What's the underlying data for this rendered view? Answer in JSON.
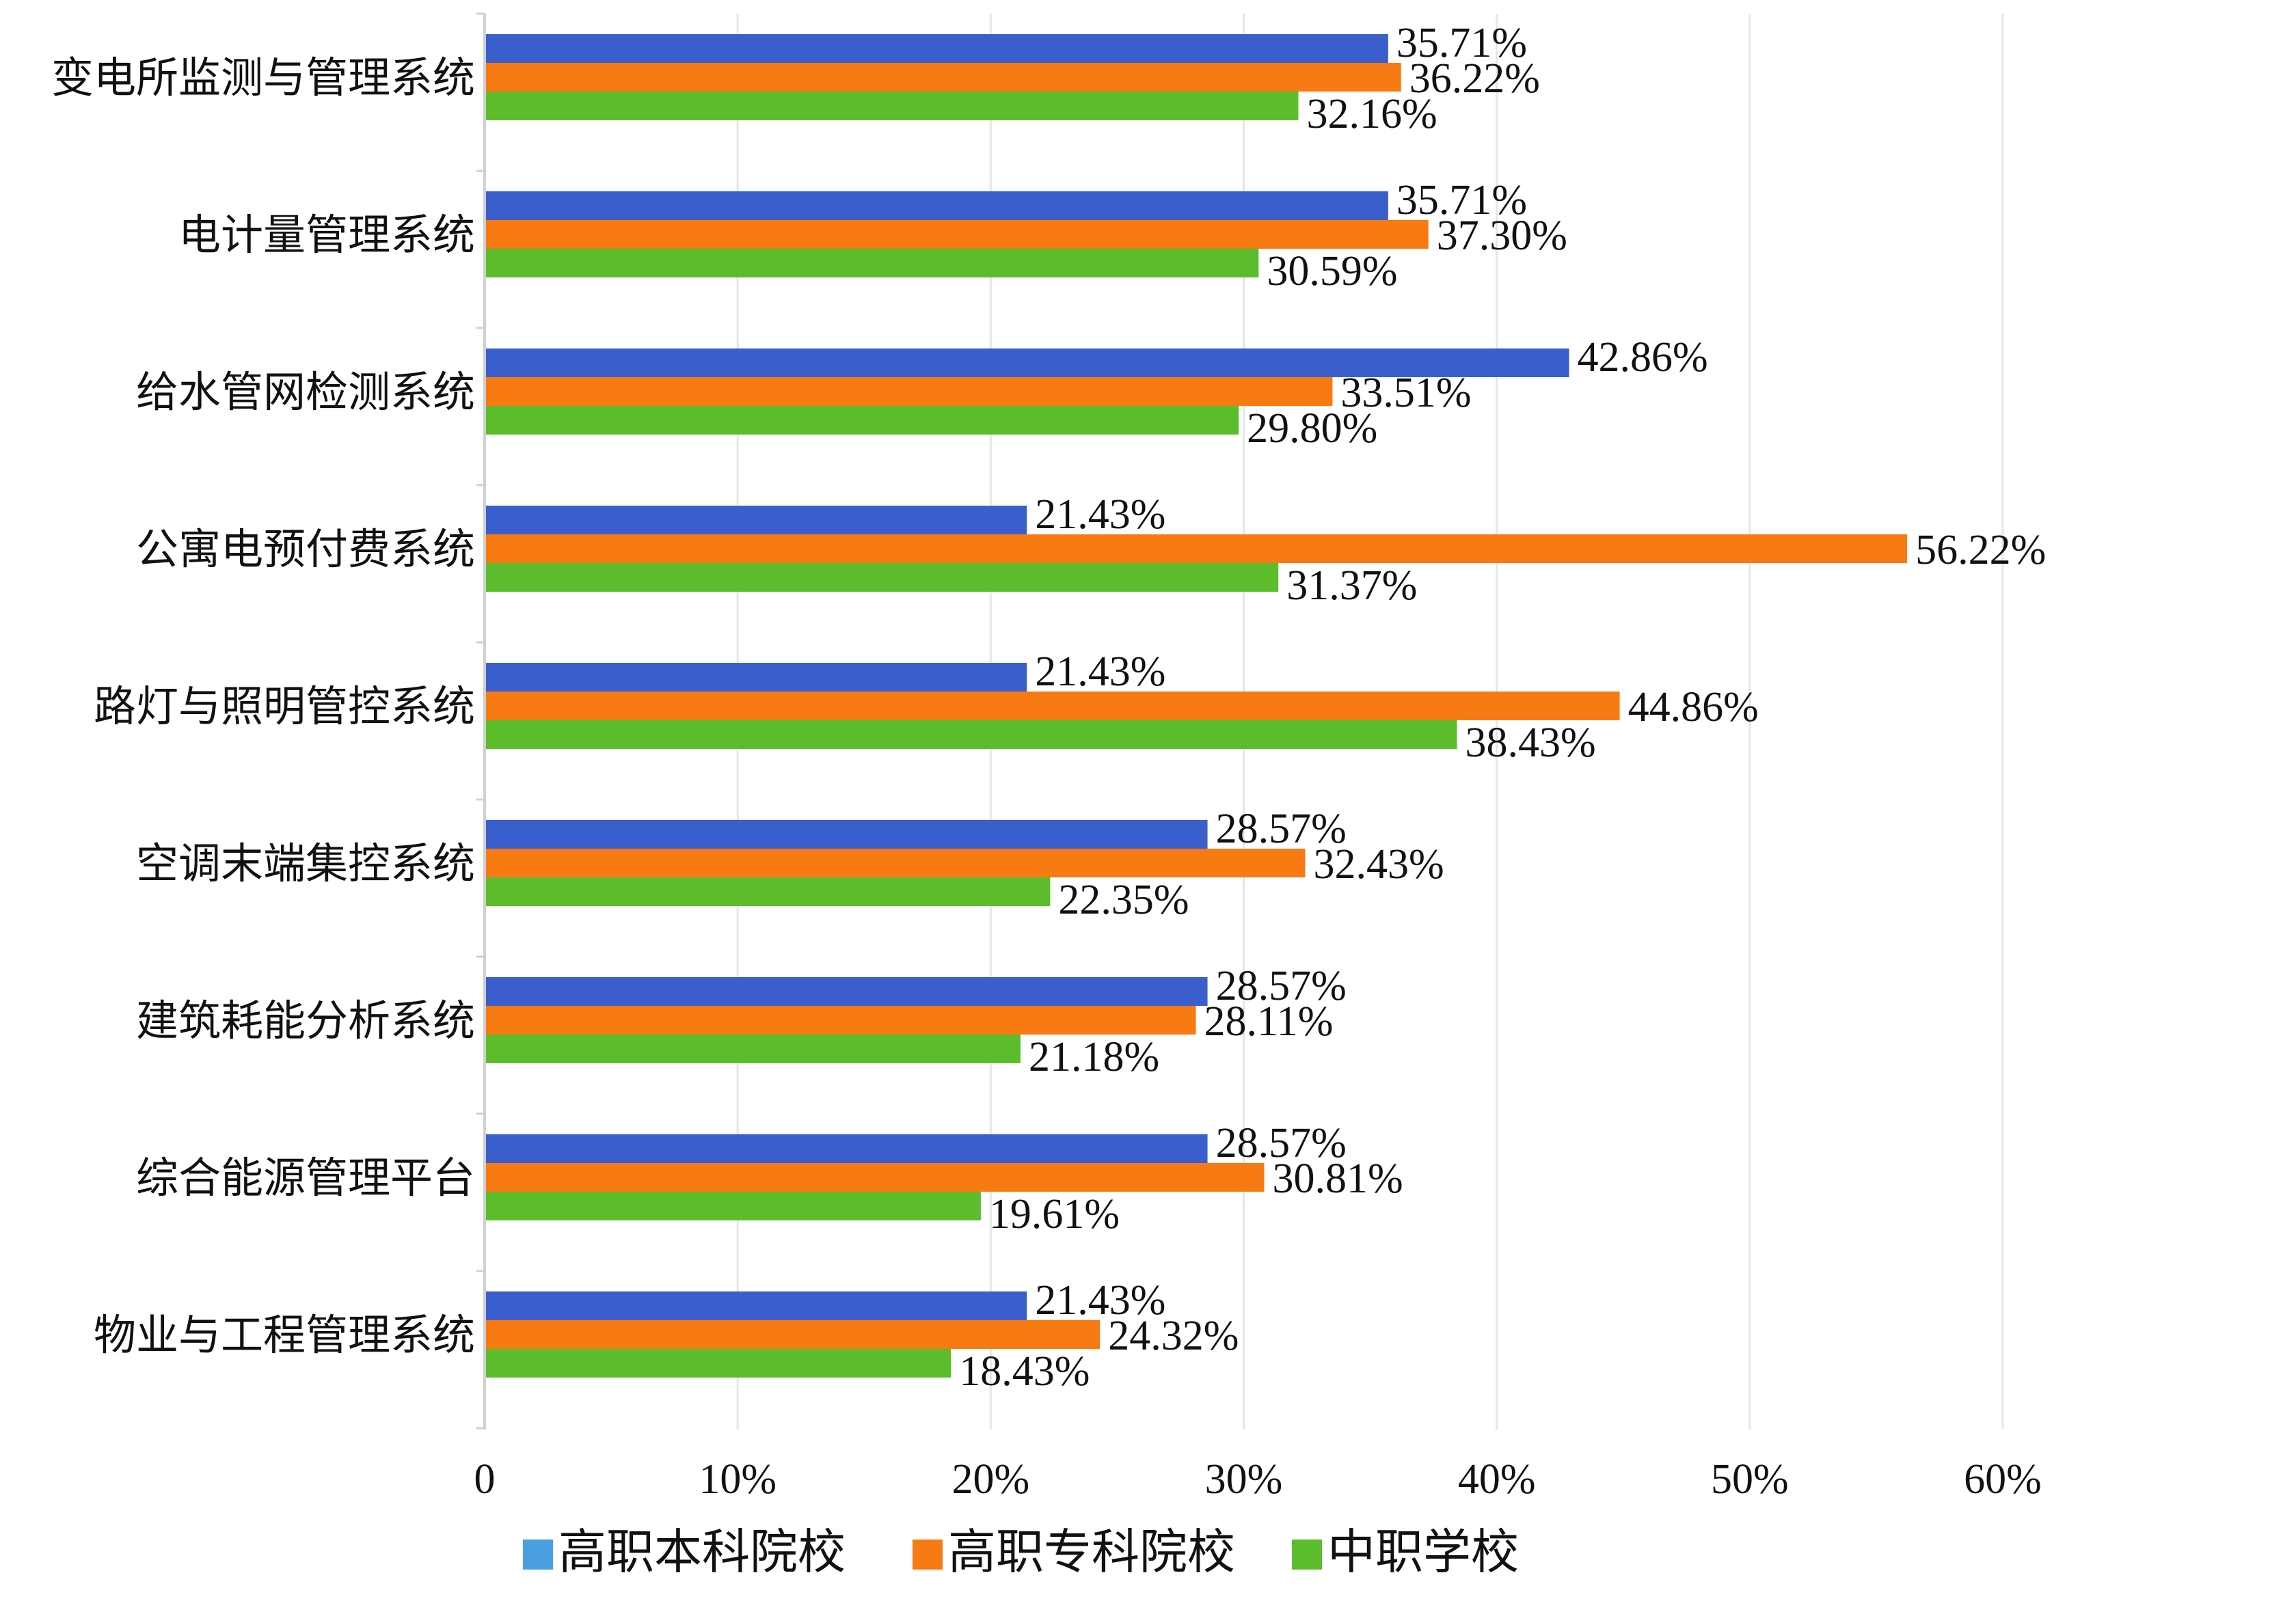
{
  "chart_data": {
    "type": "bar",
    "orientation": "horizontal",
    "categories": [
      "变电所监测与管理系统",
      "电计量管理系统",
      "给水管网检测系统",
      "公寓电预付费系统",
      "路灯与照明管控系统",
      "空调末端集控系统",
      "建筑耗能分析系统",
      "综合能源管理平台",
      "物业与工程管理系统"
    ],
    "series": [
      {
        "name": "高职本科院校",
        "color": "#3a5fcd",
        "legend_color": "#4a9fe0",
        "values": [
          35.71,
          35.71,
          42.86,
          21.43,
          21.43,
          28.57,
          28.57,
          28.57,
          21.43
        ],
        "labels": [
          "35.71%",
          "35.71%",
          "42.86%",
          "21.43%",
          "21.43%",
          "28.57%",
          "28.57%",
          "28.57%",
          "21.43%"
        ]
      },
      {
        "name": "高职专科院校",
        "color": "#f77b12",
        "legend_color": "#f77b12",
        "values": [
          36.22,
          37.3,
          33.51,
          56.22,
          44.86,
          32.43,
          28.11,
          30.81,
          24.32
        ],
        "labels": [
          "36.22%",
          "37.30%",
          "33.51%",
          "56.22%",
          "44.86%",
          "32.43%",
          "28.11%",
          "30.81%",
          "24.32%"
        ]
      },
      {
        "name": "中职学校",
        "color": "#5bbd2b",
        "legend_color": "#5bbd2b",
        "values": [
          32.16,
          30.59,
          29.8,
          31.37,
          38.43,
          22.35,
          21.18,
          19.61,
          18.43
        ],
        "labels": [
          "32.16%",
          "30.59%",
          "29.80%",
          "31.37%",
          "38.43%",
          "22.35%",
          "21.18%",
          "19.61%",
          "18.43%"
        ]
      }
    ],
    "xlim": [
      0,
      60
    ],
    "x_ticks": [
      0,
      10,
      20,
      30,
      40,
      50,
      60
    ],
    "x_tick_labels": [
      "0",
      "10%",
      "20%",
      "30%",
      "40%",
      "50%",
      "60%"
    ],
    "grid": true,
    "legend_position": "bottom"
  }
}
